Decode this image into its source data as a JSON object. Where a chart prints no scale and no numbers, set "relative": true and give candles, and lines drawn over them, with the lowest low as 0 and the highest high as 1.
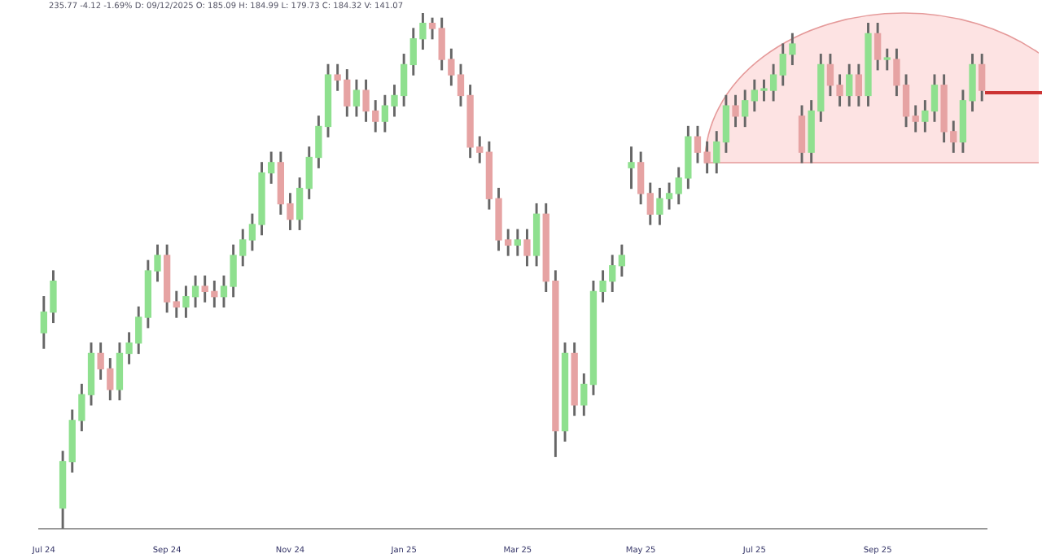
{
  "chart_data": {
    "type": "candlestick",
    "relative": true,
    "annotations": [
      "235.77 -4.12 -1.69% D: 09/12/2025 O: 185.09 H: 184.99 L: 179.73 C: 184.32 V: 141.07"
    ],
    "categories": [
      "Jul 24",
      null,
      null,
      null,
      null,
      null,
      null,
      null,
      null,
      null,
      null,
      null,
      null,
      "Sep 24",
      null,
      null,
      null,
      null,
      null,
      null,
      null,
      null,
      null,
      null,
      null,
      null,
      "Nov 24",
      null,
      null,
      null,
      null,
      null,
      null,
      null,
      null,
      null,
      null,
      null,
      "Jan 25",
      null,
      null,
      null,
      null,
      null,
      null,
      null,
      null,
      null,
      null,
      null,
      "Mar 25",
      null,
      null,
      null,
      null,
      null,
      null,
      null,
      null,
      null,
      null,
      null,
      null,
      "May 25",
      null,
      null,
      null,
      null,
      null,
      null,
      null,
      null,
      null,
      null,
      null,
      "Jul 25",
      null,
      null,
      null,
      null,
      null,
      null,
      null,
      null,
      null,
      null,
      null,
      null,
      "Sep 25",
      null,
      null,
      null,
      null,
      null,
      null,
      null,
      null,
      null,
      null,
      null
    ],
    "ohlc": [
      [
        0.38,
        0.45,
        0.35,
        0.42
      ],
      [
        0.42,
        0.5,
        0.4,
        0.48
      ],
      [
        0.04,
        0.15,
        0,
        0.13
      ],
      [
        0.13,
        0.23,
        0.11,
        0.21
      ],
      [
        0.21,
        0.28,
        0.19,
        0.26
      ],
      [
        0.26,
        0.36,
        0.24,
        0.34
      ],
      [
        0.34,
        0.36,
        0.29,
        0.31
      ],
      [
        0.31,
        0.33,
        0.25,
        0.27
      ],
      [
        0.27,
        0.36,
        0.25,
        0.34
      ],
      [
        0.34,
        0.38,
        0.32,
        0.36
      ],
      [
        0.36,
        0.43,
        0.34,
        0.41
      ],
      [
        0.41,
        0.52,
        0.39,
        0.5
      ],
      [
        0.5,
        0.55,
        0.48,
        0.53
      ],
      [
        0.53,
        0.55,
        0.42,
        0.44
      ],
      [
        0.44,
        0.46,
        0.41,
        0.43
      ],
      [
        0.43,
        0.47,
        0.41,
        0.45
      ],
      [
        0.45,
        0.49,
        0.43,
        0.47
      ],
      [
        0.47,
        0.49,
        0.44,
        0.46
      ],
      [
        0.46,
        0.48,
        0.43,
        0.45
      ],
      [
        0.45,
        0.49,
        0.43,
        0.47
      ],
      [
        0.47,
        0.55,
        0.45,
        0.53
      ],
      [
        0.53,
        0.58,
        0.51,
        0.56
      ],
      [
        0.56,
        0.61,
        0.54,
        0.59
      ],
      [
        0.59,
        0.71,
        0.57,
        0.69
      ],
      [
        0.69,
        0.73,
        0.67,
        0.71
      ],
      [
        0.71,
        0.73,
        0.61,
        0.63
      ],
      [
        0.63,
        0.65,
        0.58,
        0.6
      ],
      [
        0.6,
        0.68,
        0.58,
        0.66
      ],
      [
        0.66,
        0.74,
        0.64,
        0.72
      ],
      [
        0.72,
        0.8,
        0.7,
        0.78
      ],
      [
        0.78,
        0.9,
        0.76,
        0.88
      ],
      [
        0.88,
        0.9,
        0.85,
        0.87
      ],
      [
        0.87,
        0.89,
        0.8,
        0.82
      ],
      [
        0.82,
        0.87,
        0.8,
        0.85
      ],
      [
        0.85,
        0.87,
        0.79,
        0.81
      ],
      [
        0.81,
        0.83,
        0.77,
        0.79
      ],
      [
        0.79,
        0.84,
        0.77,
        0.82
      ],
      [
        0.82,
        0.86,
        0.8,
        0.84
      ],
      [
        0.84,
        0.92,
        0.82,
        0.9
      ],
      [
        0.9,
        0.97,
        0.88,
        0.95
      ],
      [
        0.95,
        1,
        0.93,
        0.98
      ],
      [
        0.98,
        0.99,
        0.95,
        0.97
      ],
      [
        0.97,
        0.99,
        0.89,
        0.91
      ],
      [
        0.91,
        0.93,
        0.86,
        0.88
      ],
      [
        0.88,
        0.9,
        0.82,
        0.84
      ],
      [
        0.84,
        0.86,
        0.72,
        0.74
      ],
      [
        0.74,
        0.76,
        0.71,
        0.73
      ],
      [
        0.73,
        0.75,
        0.62,
        0.64
      ],
      [
        0.64,
        0.66,
        0.54,
        0.56
      ],
      [
        0.56,
        0.58,
        0.53,
        0.55
      ],
      [
        0.55,
        0.58,
        0.53,
        0.56
      ],
      [
        0.56,
        0.58,
        0.51,
        0.53
      ],
      [
        0.53,
        0.63,
        0.51,
        0.61
      ],
      [
        0.61,
        0.63,
        0.46,
        0.48
      ],
      [
        0.48,
        0.5,
        0.14,
        0.19
      ],
      [
        0.19,
        0.36,
        0.17,
        0.34
      ],
      [
        0.34,
        0.36,
        0.22,
        0.24
      ],
      [
        0.24,
        0.3,
        0.22,
        0.28
      ],
      [
        0.28,
        0.48,
        0.26,
        0.46
      ],
      [
        0.46,
        0.5,
        0.44,
        0.48
      ],
      [
        0.48,
        0.53,
        0.46,
        0.51
      ],
      [
        0.51,
        0.55,
        0.49,
        0.53
      ],
      [
        0.7,
        0.74,
        0.66,
        0.71
      ],
      [
        0.71,
        0.73,
        0.63,
        0.65
      ],
      [
        0.65,
        0.67,
        0.59,
        0.61
      ],
      [
        0.61,
        0.66,
        0.59,
        0.64
      ],
      [
        0.64,
        0.67,
        0.62,
        0.65
      ],
      [
        0.65,
        0.7,
        0.63,
        0.68
      ],
      [
        0.68,
        0.78,
        0.66,
        0.76
      ],
      [
        0.76,
        0.78,
        0.71,
        0.73
      ],
      [
        0.73,
        0.75,
        0.69,
        0.71
      ],
      [
        0.71,
        0.77,
        0.69,
        0.75
      ],
      [
        0.75,
        0.84,
        0.73,
        0.82
      ],
      [
        0.82,
        0.84,
        0.78,
        0.8
      ],
      [
        0.8,
        0.85,
        0.78,
        0.83
      ],
      [
        0.83,
        0.87,
        0.81,
        0.85
      ],
      [
        0.85,
        0.87,
        0.83,
        0.85
      ],
      [
        0.85,
        0.9,
        0.83,
        0.88
      ],
      [
        0.88,
        0.94,
        0.86,
        0.92
      ],
      [
        0.92,
        0.96,
        0.9,
        0.94
      ],
      [
        0.8,
        0.82,
        0.71,
        0.73
      ],
      [
        0.73,
        0.83,
        0.71,
        0.81
      ],
      [
        0.81,
        0.92,
        0.79,
        0.9
      ],
      [
        0.9,
        0.92,
        0.84,
        0.86
      ],
      [
        0.86,
        0.88,
        0.82,
        0.84
      ],
      [
        0.84,
        0.9,
        0.82,
        0.88
      ],
      [
        0.88,
        0.9,
        0.82,
        0.84
      ],
      [
        0.84,
        0.98,
        0.82,
        0.96
      ],
      [
        0.96,
        0.98,
        0.89,
        0.91
      ],
      [
        0.91,
        0.93,
        0.89,
        0.91
      ],
      [
        0.91,
        0.93,
        0.84,
        0.86
      ],
      [
        0.86,
        0.88,
        0.78,
        0.8
      ],
      [
        0.8,
        0.82,
        0.77,
        0.79
      ],
      [
        0.79,
        0.83,
        0.77,
        0.81
      ],
      [
        0.81,
        0.88,
        0.79,
        0.86
      ],
      [
        0.86,
        0.88,
        0.75,
        0.77
      ],
      [
        0.77,
        0.79,
        0.73,
        0.75
      ],
      [
        0.75,
        0.85,
        0.73,
        0.83
      ],
      [
        0.83,
        0.92,
        0.81,
        0.9
      ],
      [
        0.9,
        0.92,
        0.83,
        0.85
      ]
    ]
  }
}
